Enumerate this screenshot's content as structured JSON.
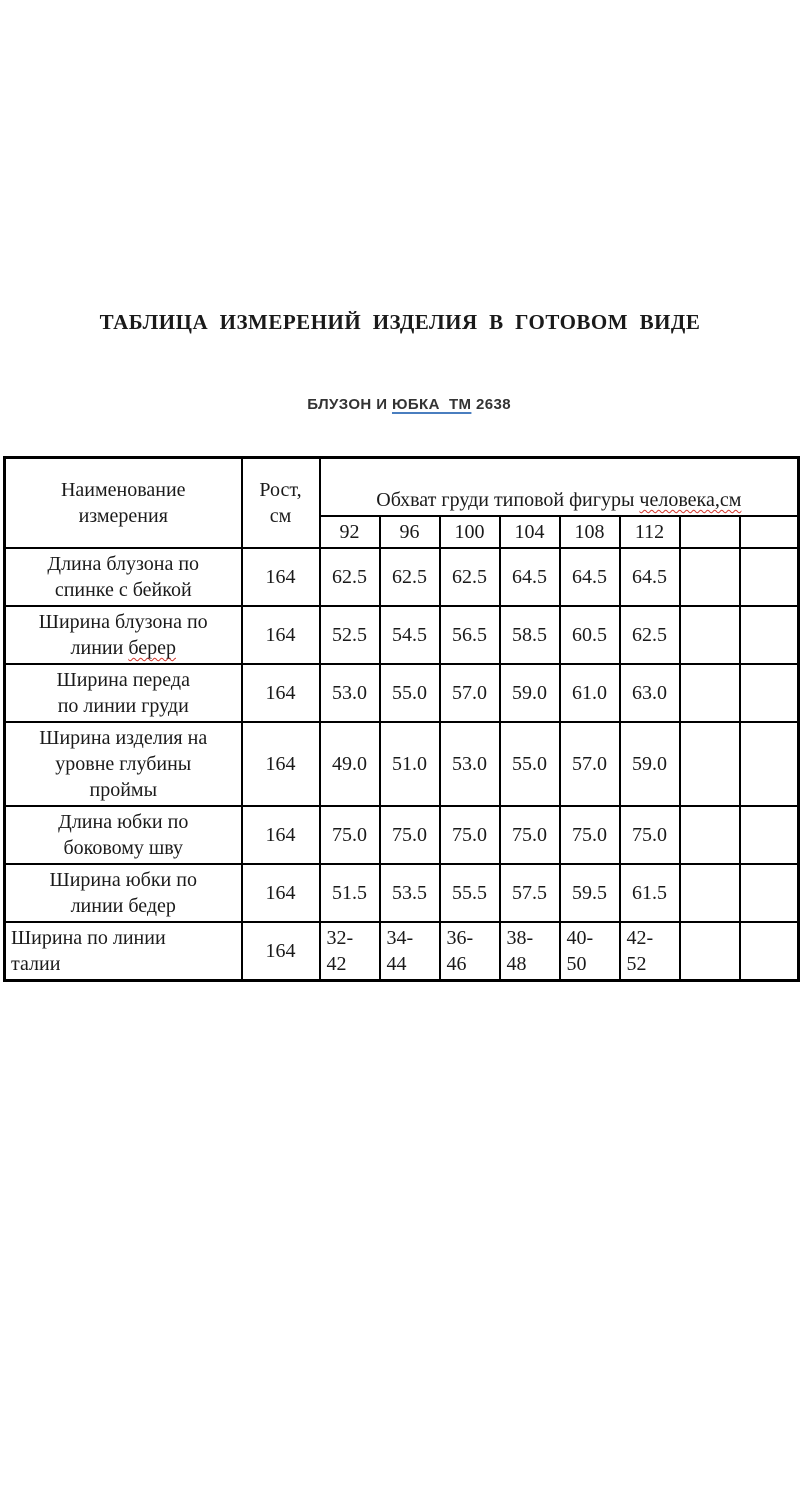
{
  "header": {
    "title": "ТАБЛИЦА  ИЗМЕРЕНИЙ  ИЗДЕЛИЯ  В  ГОТОВОМ  ВИДЕ",
    "subtitle": {
      "prefix": "БЛУЗОН И ",
      "underlined": "ЮБКА  ТМ",
      "suffix": " 2638"
    }
  },
  "colors": {
    "hyperlink_underline": "#4a7ebf",
    "spellcheck_wavy": "#d3352b",
    "table_border": "#000000",
    "text": "#1a1a1a"
  },
  "table": {
    "name_header": "Наименование\nизмерения",
    "height_header": "Рост,\nсм",
    "chest_header": {
      "prefix": "Обхват груди типовой фигуры ",
      "misspelled": "человека,см"
    },
    "size_columns": [
      "92",
      "96",
      "100",
      "104",
      "108",
      "112",
      "",
      ""
    ],
    "rows": [
      {
        "label": "Длина блузона по\nспинке с бейкой",
        "misspelled": "",
        "height": "164",
        "values": [
          "62.5",
          "62.5",
          "62.5",
          "64.5",
          "64.5",
          "64.5",
          "",
          ""
        ]
      },
      {
        "label": "Ширина блузона по\nлинии берер",
        "misspelled": "берер",
        "height": "164",
        "values": [
          "52.5",
          "54.5",
          "56.5",
          "58.5",
          "60.5",
          "62.5",
          "",
          ""
        ]
      },
      {
        "label": "Ширина переда\nпо линии груди",
        "misspelled": "",
        "height": "164",
        "values": [
          "53.0",
          "55.0",
          "57.0",
          "59.0",
          "61.0",
          "63.0",
          "",
          ""
        ]
      },
      {
        "label": "Ширина изделия на\nуровне глубины\nпроймы",
        "misspelled": "",
        "height": "164",
        "tall": true,
        "values": [
          "49.0",
          "51.0",
          "53.0",
          "55.0",
          "57.0",
          "59.0",
          "",
          ""
        ]
      },
      {
        "label": "Длина юбки по\nбоковому шву",
        "misspelled": "",
        "height": "164",
        "values": [
          "75.0",
          "75.0",
          "75.0",
          "75.0",
          "75.0",
          "75.0",
          "",
          ""
        ]
      },
      {
        "label": "Ширина юбки по\nлинии бедер",
        "misspelled": "",
        "height": "164",
        "values": [
          "51.5",
          "53.5",
          "55.5",
          "57.5",
          "59.5",
          "61.5",
          "",
          ""
        ]
      },
      {
        "label": "Ширина по линии\nталии",
        "misspelled": "",
        "height": "164",
        "left_align": true,
        "values": [
          "32-\n42",
          "34-\n44",
          "36-\n46",
          "38-\n48",
          "40-\n50",
          "42-\n52",
          "",
          ""
        ]
      }
    ]
  }
}
